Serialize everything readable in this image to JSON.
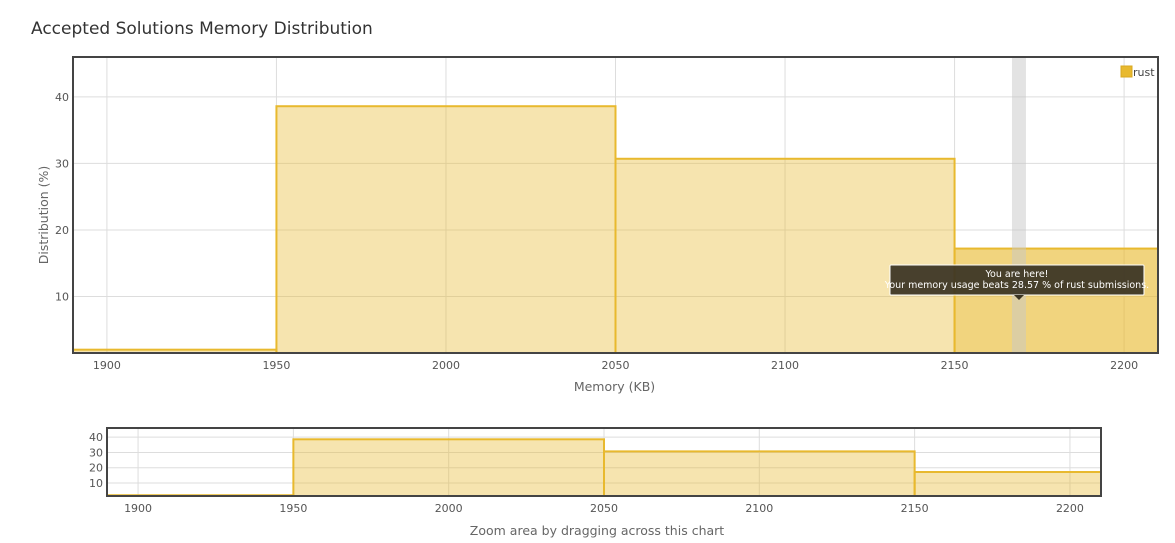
{
  "page": {
    "title": "Accepted Solutions Memory Distribution"
  },
  "chart_data": {
    "type": "bar",
    "title": "Accepted Solutions Memory Distribution",
    "xlabel": "Memory (KB)",
    "ylabel": "Distribution (%)",
    "xlim": [
      1890,
      2210
    ],
    "ylim": [
      1.5,
      46
    ],
    "xticks": [
      "1900",
      "1950",
      "2000",
      "2050",
      "2100",
      "2150",
      "2200"
    ],
    "yticks": [
      "10",
      "20",
      "30",
      "40"
    ],
    "grid": true,
    "legend_position": "top-right",
    "series": [
      {
        "name": "rust",
        "color": "#e8b92e",
        "bins": [
          {
            "x0": 1890,
            "x1": 1950,
            "value": 2.0
          },
          {
            "x0": 1950,
            "x1": 2050,
            "value": 38.6
          },
          {
            "x0": 2050,
            "x1": 2150,
            "value": 30.7
          },
          {
            "x0": 2150,
            "x1": 2210,
            "value": 17.2
          }
        ]
      }
    ],
    "highlight": {
      "x": 2169,
      "bin_index": 3
    },
    "tooltip": {
      "line1": "You are here!",
      "line2": "Your memory usage beats 28.57 % of rust submissions."
    },
    "navigator": {
      "label": "Zoom area by dragging across this chart",
      "xlim": [
        1890,
        2210
      ],
      "ylim": [
        1.5,
        46
      ],
      "xticks": [
        "1900",
        "1950",
        "2000",
        "2050",
        "2100",
        "2150",
        "2200"
      ],
      "yticks": [
        "10",
        "20",
        "30",
        "40"
      ]
    }
  }
}
